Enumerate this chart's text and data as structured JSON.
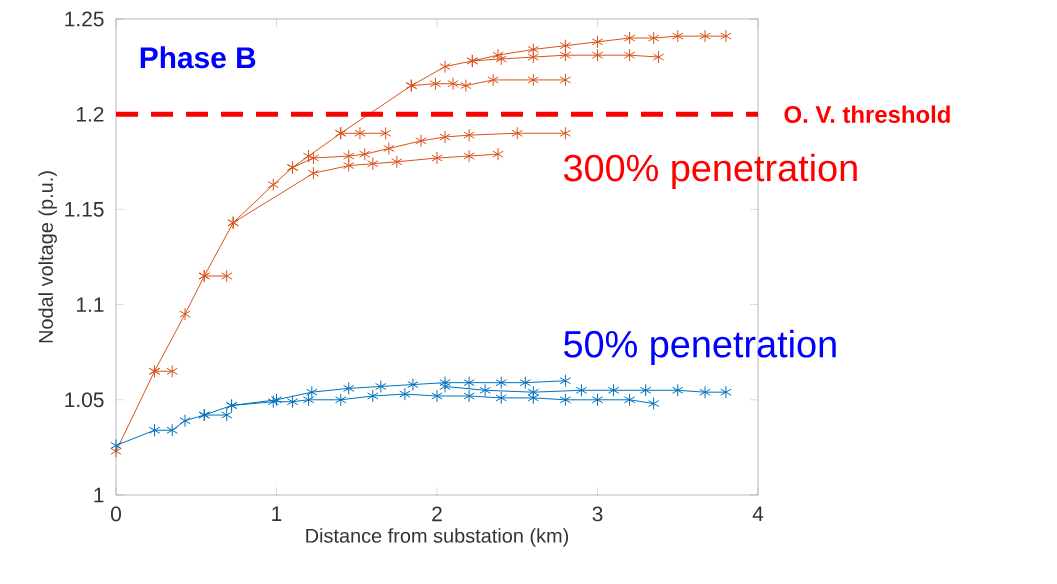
{
  "chart_data": {
    "type": "line",
    "xlabel": "Distance from substation (km)",
    "ylabel": "Nodal voltage (p.u.)",
    "annotations": [
      "Phase B",
      "300% penetration",
      "50% penetration"
    ],
    "xlim": [
      0,
      4
    ],
    "ylim": [
      1,
      1.25
    ],
    "xticks": [
      0,
      1,
      2,
      3,
      4
    ],
    "yticks": [
      1,
      1.05,
      1.1,
      1.15,
      1.2,
      1.25
    ],
    "marker": "cross",
    "line_style": "solid",
    "grid": false,
    "ref_lines": [
      {
        "axis": "y",
        "value": 1.2,
        "label": "O. V. threshold",
        "color": "#ff0000",
        "line_style": "dashed"
      }
    ],
    "series": [
      {
        "color": "#d95319",
        "x": [
          0,
          0.24,
          0.43,
          0.55,
          0.73,
          0.98,
          1.1,
          1.2,
          1.4,
          1.84,
          2.05,
          2.22,
          2.38,
          2.6,
          2.8,
          3.0,
          3.2,
          3.35,
          3.5,
          3.67,
          3.8
        ],
        "values": [
          1.023,
          1.065,
          1.095,
          1.115,
          1.143,
          1.163,
          1.172,
          1.178,
          1.19,
          1.215,
          1.225,
          1.228,
          1.231,
          1.234,
          1.236,
          1.238,
          1.24,
          1.24,
          1.241,
          1.241,
          1.241
        ]
      },
      {
        "color": "#d95319",
        "x": [
          0.24,
          0.35
        ],
        "values": [
          1.065,
          1.065
        ]
      },
      {
        "color": "#d95319",
        "x": [
          0.55,
          0.69
        ],
        "values": [
          1.115,
          1.115
        ]
      },
      {
        "color": "#d95319",
        "x": [
          1.4,
          1.52,
          1.68
        ],
        "values": [
          1.19,
          1.19,
          1.19
        ]
      },
      {
        "color": "#d95319",
        "x": [
          1.84,
          1.99,
          2.1,
          2.18,
          2.35,
          2.6,
          2.8
        ],
        "values": [
          1.215,
          1.216,
          1.216,
          1.215,
          1.218,
          1.218,
          1.218
        ]
      },
      {
        "color": "#d95319",
        "x": [
          2.22,
          2.4,
          2.6,
          2.8,
          3.0,
          3.2,
          3.38
        ],
        "values": [
          1.228,
          1.229,
          1.23,
          1.231,
          1.231,
          1.231,
          1.23
        ]
      },
      {
        "color": "#d95319",
        "x": [
          0.73,
          1.23,
          1.45,
          1.6,
          1.75,
          2.0,
          2.2,
          2.38
        ],
        "values": [
          1.143,
          1.169,
          1.173,
          1.174,
          1.175,
          1.177,
          1.178,
          1.179
        ]
      },
      {
        "color": "#d95319",
        "x": [
          1.1,
          1.23,
          1.45,
          1.55,
          1.7,
          1.9,
          2.05,
          2.2,
          2.5,
          2.8
        ],
        "values": [
          1.172,
          1.177,
          1.178,
          1.179,
          1.182,
          1.186,
          1.188,
          1.189,
          1.19,
          1.19
        ]
      },
      {
        "color": "#0072bd",
        "x": [
          0,
          0.24,
          0.35,
          0.43,
          0.55,
          0.72,
          0.98,
          1.1,
          1.2,
          1.4,
          1.6,
          1.8,
          2.0,
          2.2,
          2.4,
          2.6,
          2.8,
          3.0,
          3.2,
          3.35
        ],
        "values": [
          1.026,
          1.034,
          1.034,
          1.039,
          1.042,
          1.047,
          1.049,
          1.049,
          1.05,
          1.05,
          1.052,
          1.053,
          1.052,
          1.052,
          1.051,
          1.051,
          1.05,
          1.05,
          1.05,
          1.048
        ]
      },
      {
        "color": "#0072bd",
        "x": [
          0.72,
          1.0,
          1.22,
          1.45,
          1.65,
          1.85,
          2.05,
          2.2,
          2.4,
          2.55,
          2.8
        ],
        "values": [
          1.047,
          1.05,
          1.054,
          1.056,
          1.057,
          1.058,
          1.059,
          1.059,
          1.059,
          1.059,
          1.06
        ]
      },
      {
        "color": "#0072bd",
        "x": [
          2.05,
          2.3,
          2.6,
          2.9,
          3.1,
          3.3,
          3.5,
          3.67,
          3.8
        ],
        "values": [
          1.057,
          1.055,
          1.054,
          1.055,
          1.055,
          1.055,
          1.055,
          1.054,
          1.054
        ]
      },
      {
        "color": "#0072bd",
        "x": [
          0.55,
          0.69
        ],
        "values": [
          1.042,
          1.042
        ]
      }
    ]
  }
}
